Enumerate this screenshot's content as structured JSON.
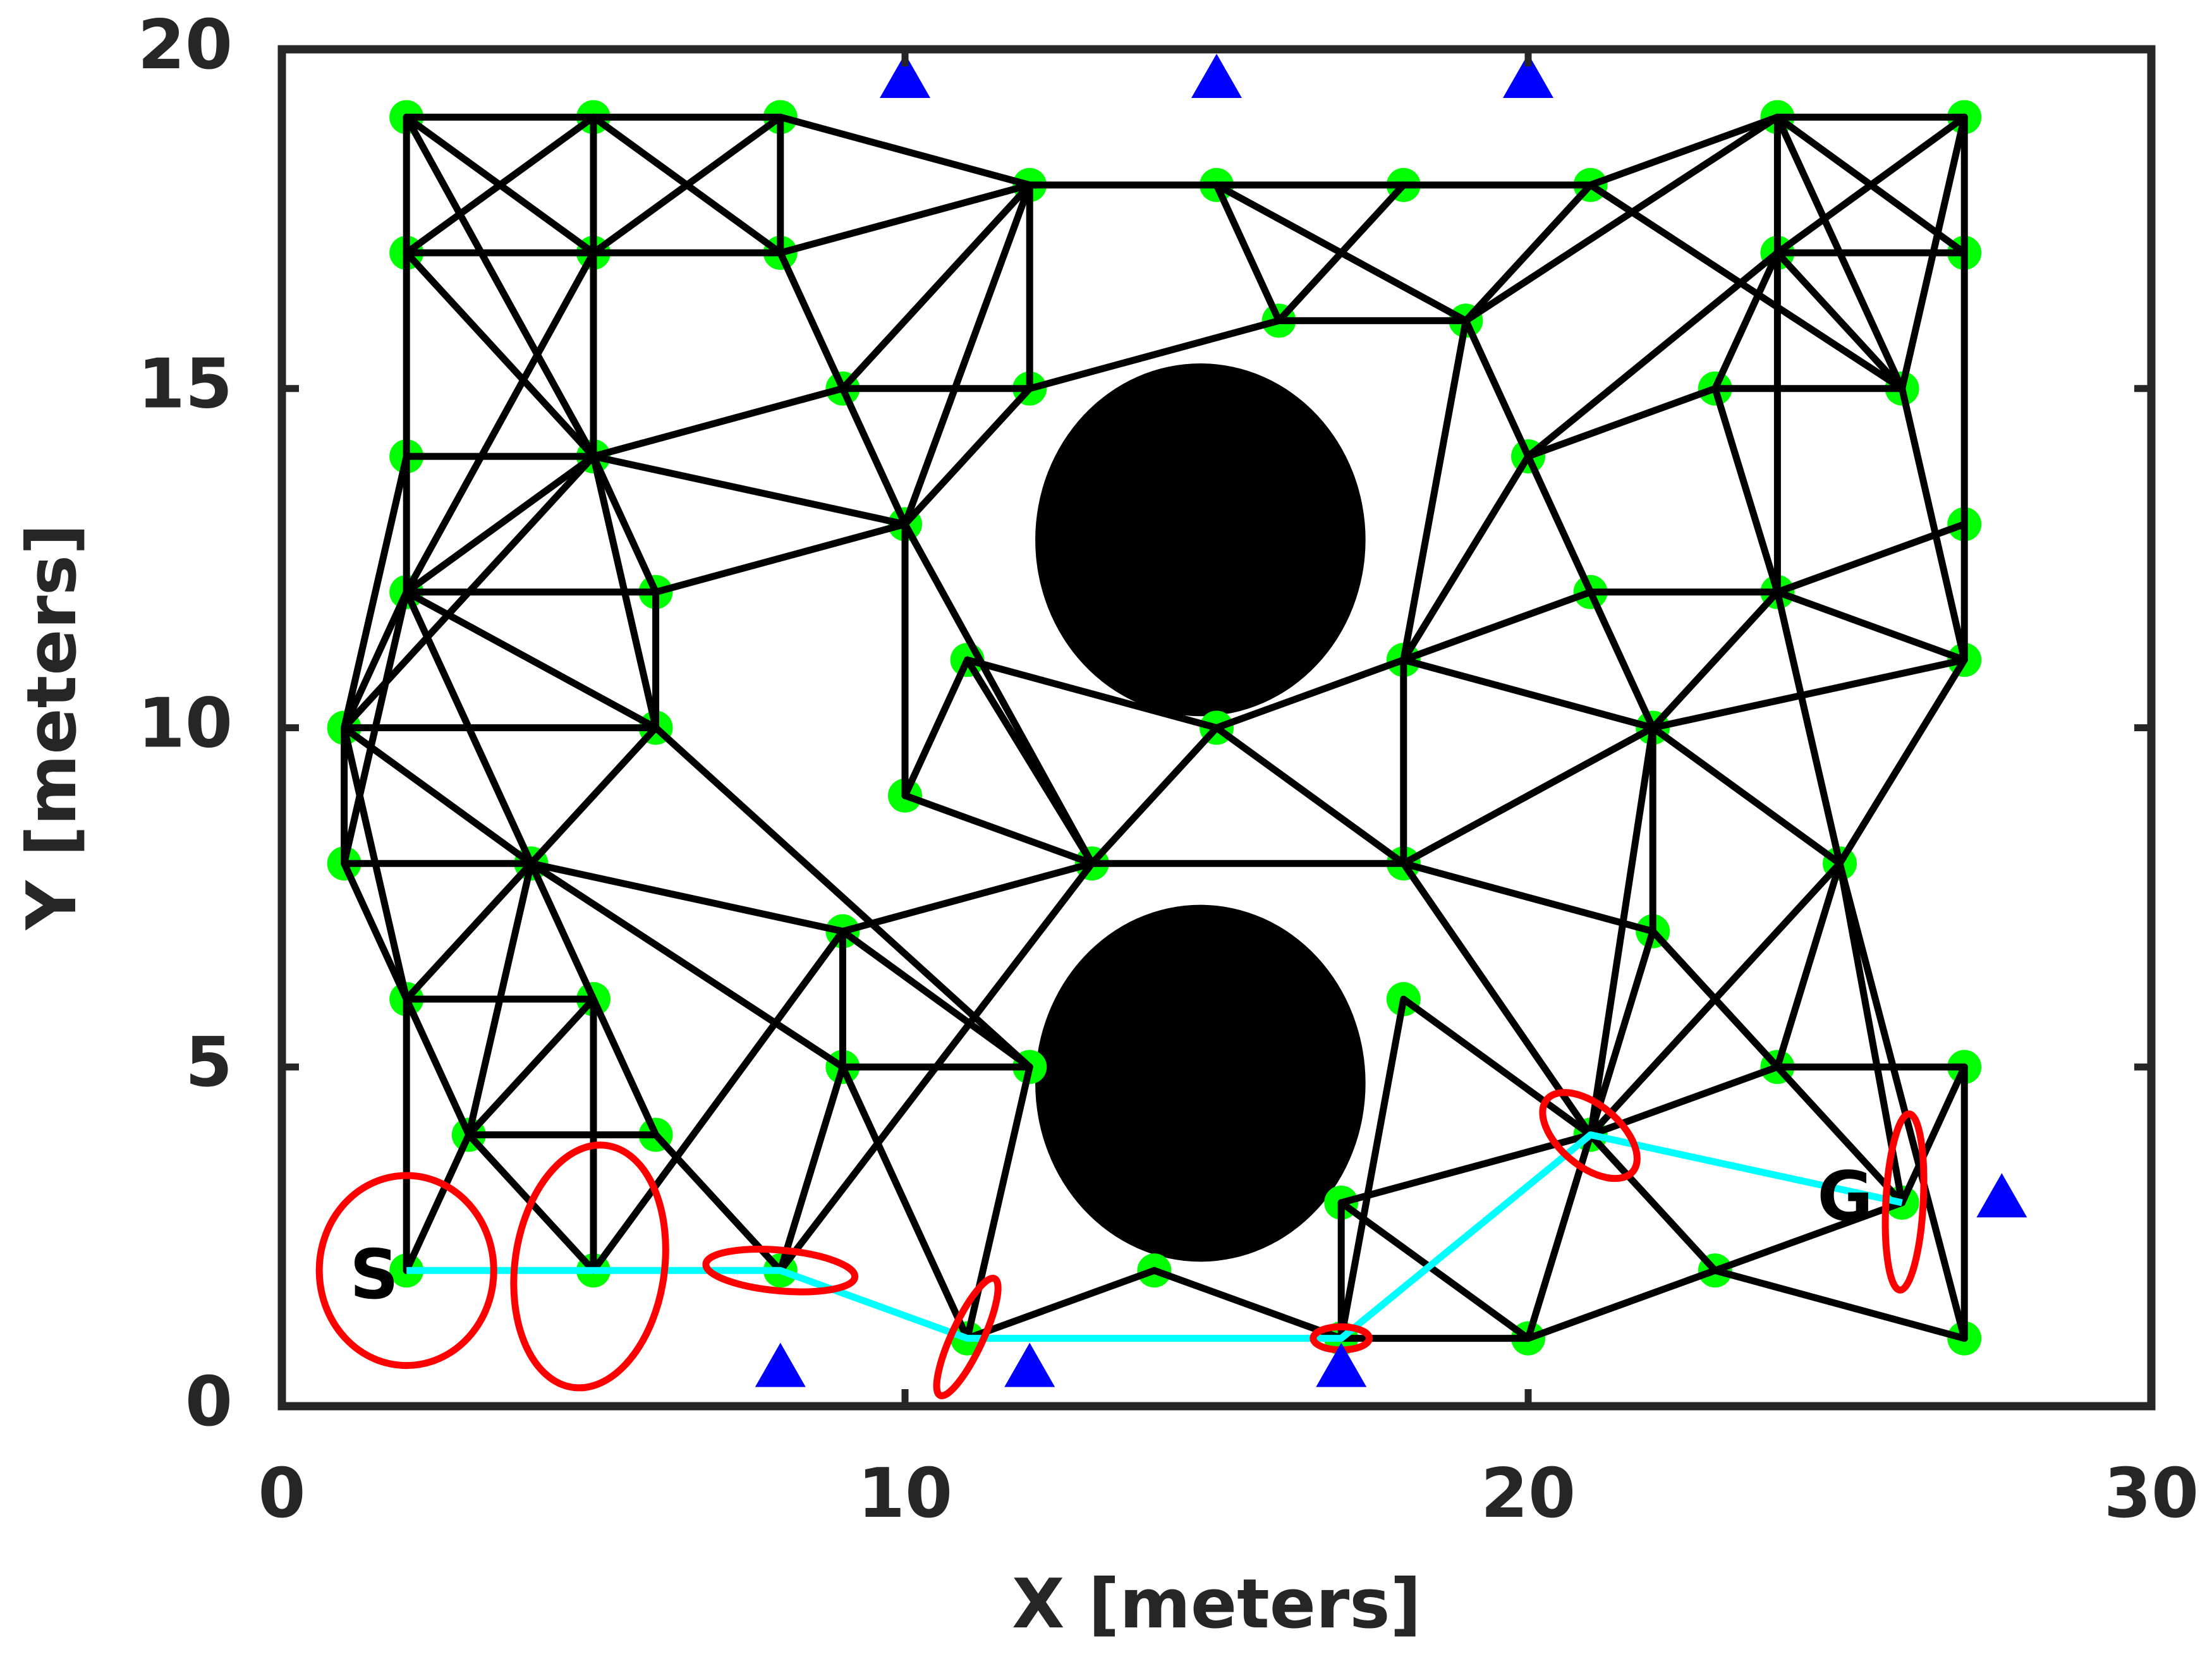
{
  "chart_data": {
    "type": "roadmap",
    "xlabel": "X [meters]",
    "ylabel": "Y [meters]",
    "xlim": [
      0,
      30
    ],
    "ylim": [
      0,
      20
    ],
    "xticks": [
      0,
      10,
      20,
      30
    ],
    "yticks": [
      0,
      5,
      10,
      15,
      20
    ],
    "obstacles": {
      "color": "#000000",
      "items": [
        {
          "x": 14.74,
          "y": 12.77,
          "rx": 2.65,
          "ry": 2.6
        },
        {
          "x": 14.74,
          "y": 4.76,
          "rx": 2.65,
          "ry": 2.63
        }
      ]
    },
    "nodes": {
      "color": "#00ff00",
      "x": [
        2,
        5,
        8,
        2,
        5,
        8,
        12,
        15,
        18,
        21,
        16,
        19,
        24,
        27,
        24,
        27,
        9,
        12,
        23,
        26,
        2,
        5,
        20,
        10,
        27,
        2,
        6,
        21,
        24,
        1,
        6,
        15,
        22,
        11,
        18,
        27,
        10,
        1,
        4,
        13,
        18,
        25,
        9,
        22,
        2,
        5,
        18,
        9,
        12,
        24,
        27,
        3,
        6,
        21,
        17,
        26,
        2,
        5,
        8,
        14,
        23,
        11,
        17,
        20,
        27
      ],
      "y": [
        19,
        19,
        19,
        17,
        17,
        17,
        18,
        18,
        18,
        18,
        16,
        16,
        19,
        19,
        17,
        17,
        15,
        15,
        15,
        15,
        14,
        14,
        14,
        13,
        13,
        12,
        12,
        12,
        12,
        10,
        10,
        10,
        10,
        11,
        11,
        11,
        9,
        8,
        8,
        8,
        8,
        8,
        7,
        7,
        6,
        6,
        6,
        5,
        5,
        5,
        5,
        4,
        4,
        4,
        3,
        3,
        2,
        2,
        2,
        2,
        2,
        1,
        1,
        1,
        1
      ]
    },
    "edges": {
      "color": "#000000",
      "items": [
        [
          2,
          19,
          5,
          19
        ],
        [
          5,
          19,
          8,
          19
        ],
        [
          2,
          19,
          2,
          12
        ],
        [
          5,
          19,
          5,
          17
        ],
        [
          8,
          19,
          8,
          17
        ],
        [
          2,
          17,
          5,
          17
        ],
        [
          5,
          17,
          8,
          17
        ],
        [
          2,
          19,
          5,
          17
        ],
        [
          5,
          19,
          2,
          17
        ],
        [
          5,
          19,
          8,
          17
        ],
        [
          8,
          19,
          5,
          17
        ],
        [
          8,
          19,
          12,
          18
        ],
        [
          2,
          19,
          5,
          14
        ],
        [
          2,
          17,
          5,
          14
        ],
        [
          5,
          17,
          2,
          12
        ],
        [
          5,
          17,
          5,
          14
        ],
        [
          8,
          17,
          12,
          18
        ],
        [
          8,
          17,
          9,
          15
        ],
        [
          12,
          18,
          12,
          15
        ],
        [
          12,
          18,
          15,
          18
        ],
        [
          15,
          18,
          18,
          18
        ],
        [
          18,
          18,
          21,
          18
        ],
        [
          12,
          18,
          9,
          15
        ],
        [
          12,
          18,
          10,
          13
        ],
        [
          15,
          18,
          16,
          16
        ],
        [
          15,
          18,
          19,
          16
        ],
        [
          18,
          18,
          16,
          16
        ],
        [
          16,
          16,
          19,
          16
        ],
        [
          21,
          18,
          19,
          16
        ],
        [
          21,
          18,
          24,
          19
        ],
        [
          21,
          18,
          26,
          15
        ],
        [
          12,
          15,
          16,
          16
        ],
        [
          9,
          15,
          12,
          15
        ],
        [
          5,
          14,
          9,
          15
        ],
        [
          9,
          15,
          10,
          13
        ],
        [
          12,
          15,
          10,
          13
        ],
        [
          5,
          14,
          10,
          13
        ],
        [
          2,
          14,
          5,
          14
        ],
        [
          5,
          14,
          2,
          12
        ],
        [
          5,
          14,
          1,
          10
        ],
        [
          5,
          14,
          6,
          12
        ],
        [
          5,
          14,
          6,
          10
        ],
        [
          2,
          12,
          6,
          12
        ],
        [
          6,
          12,
          6,
          10
        ],
        [
          6,
          12,
          10,
          13
        ],
        [
          2,
          12,
          1,
          10
        ],
        [
          2,
          14,
          1,
          10
        ],
        [
          2,
          12,
          6,
          10
        ],
        [
          2,
          12,
          4,
          8
        ],
        [
          2,
          12,
          1,
          8
        ],
        [
          1,
          10,
          6,
          10
        ],
        [
          1,
          10,
          1,
          8
        ],
        [
          1,
          10,
          4,
          8
        ],
        [
          1,
          10,
          2,
          6
        ],
        [
          1,
          8,
          4,
          8
        ],
        [
          1,
          8,
          2,
          6
        ],
        [
          4,
          8,
          6,
          10
        ],
        [
          4,
          8,
          2,
          6
        ],
        [
          4,
          8,
          3,
          4
        ],
        [
          4,
          8,
          6,
          4
        ],
        [
          4,
          8,
          9,
          7
        ],
        [
          4,
          8,
          9,
          5
        ],
        [
          6,
          10,
          12,
          5
        ],
        [
          2,
          6,
          5,
          6
        ],
        [
          5,
          6,
          5,
          2
        ],
        [
          2,
          6,
          3,
          4
        ],
        [
          2,
          6,
          2,
          2
        ],
        [
          5,
          6,
          3,
          4
        ],
        [
          3,
          4,
          6,
          4
        ],
        [
          2,
          2,
          3,
          4
        ],
        [
          3,
          4,
          5,
          2
        ],
        [
          6,
          4,
          8,
          2
        ],
        [
          5,
          2,
          9,
          7
        ],
        [
          9,
          7,
          9,
          5
        ],
        [
          9,
          7,
          13,
          8
        ],
        [
          10,
          9,
          13,
          8
        ],
        [
          8,
          2,
          13,
          8
        ],
        [
          9,
          5,
          8,
          2
        ],
        [
          9,
          5,
          12,
          5
        ],
        [
          9,
          7,
          12,
          5
        ],
        [
          9,
          5,
          11,
          1
        ],
        [
          12,
          5,
          11,
          1
        ],
        [
          10,
          13,
          10,
          9
        ],
        [
          10,
          13,
          13,
          8
        ],
        [
          11,
          11,
          13,
          8
        ],
        [
          10,
          9,
          11,
          11
        ],
        [
          11,
          11,
          15,
          10
        ],
        [
          13,
          8,
          15,
          10
        ],
        [
          13,
          8,
          18,
          8
        ],
        [
          15,
          10,
          18,
          8
        ],
        [
          15,
          10,
          18,
          11
        ],
        [
          18,
          11,
          18,
          8
        ],
        [
          18,
          11,
          19,
          16
        ],
        [
          18,
          11,
          21,
          12
        ],
        [
          18,
          11,
          22,
          10
        ],
        [
          18,
          11,
          20,
          14
        ],
        [
          18,
          8,
          22,
          10
        ],
        [
          18,
          8,
          22,
          7
        ],
        [
          18,
          8,
          21,
          4
        ],
        [
          18,
          6,
          21,
          4
        ],
        [
          18,
          6,
          17,
          1
        ],
        [
          20,
          14,
          19,
          16
        ],
        [
          20,
          14,
          22,
          10
        ],
        [
          20,
          14,
          24,
          17
        ],
        [
          19,
          16,
          24,
          19
        ],
        [
          20,
          14,
          23,
          15
        ],
        [
          21,
          12,
          24,
          12
        ],
        [
          22,
          10,
          24,
          12
        ],
        [
          22,
          10,
          22,
          7
        ],
        [
          22,
          10,
          27,
          11
        ],
        [
          22,
          10,
          25,
          8
        ],
        [
          22,
          10,
          21,
          4
        ],
        [
          22,
          7,
          21,
          4
        ],
        [
          22,
          7,
          26,
          3
        ],
        [
          24,
          12,
          27,
          13
        ],
        [
          24,
          12,
          27,
          11
        ],
        [
          24,
          12,
          25,
          8
        ],
        [
          24,
          12,
          23,
          15
        ],
        [
          24,
          12,
          24,
          17
        ],
        [
          24,
          19,
          27,
          19
        ],
        [
          24,
          19,
          24,
          17
        ],
        [
          24,
          17,
          27,
          17
        ],
        [
          27,
          19,
          27,
          11
        ],
        [
          24,
          19,
          27,
          17
        ],
        [
          27,
          19,
          24,
          17
        ],
        [
          24,
          19,
          26,
          15
        ],
        [
          27,
          19,
          26,
          15
        ],
        [
          24,
          17,
          26,
          15
        ],
        [
          23,
          15,
          26,
          15
        ],
        [
          23,
          15,
          24,
          17
        ],
        [
          26,
          15,
          27,
          11
        ],
        [
          25,
          8,
          27,
          11
        ],
        [
          25,
          8,
          24,
          5
        ],
        [
          25,
          8,
          26,
          3
        ],
        [
          25,
          8,
          21,
          4
        ],
        [
          25,
          8,
          27,
          1
        ],
        [
          24,
          5,
          27,
          5
        ],
        [
          27,
          5,
          27,
          1
        ],
        [
          27,
          5,
          26,
          3
        ],
        [
          24,
          5,
          21,
          4
        ],
        [
          24,
          5,
          22,
          7
        ],
        [
          21,
          4,
          20,
          1
        ],
        [
          21,
          4,
          23,
          2
        ],
        [
          21,
          4,
          17,
          3
        ],
        [
          23,
          2,
          27,
          1
        ],
        [
          20,
          1,
          26,
          3
        ],
        [
          17,
          3,
          17,
          1
        ],
        [
          17,
          3,
          20,
          1
        ],
        [
          17,
          1,
          20,
          1
        ],
        [
          11,
          1,
          14,
          2
        ],
        [
          14,
          2,
          17,
          1
        ]
      ]
    },
    "path": {
      "color": "#00ffff",
      "x": [
        2,
        5,
        8,
        11,
        17,
        21,
        26
      ],
      "y": [
        2,
        2,
        2,
        1,
        1,
        4,
        3
      ],
      "start_label": "S",
      "goal_label": "G"
    },
    "ellipses": {
      "color": "#ff0000",
      "items": [
        {
          "x": 2,
          "y": 2,
          "rx": 1.4,
          "ry": 1.4,
          "angle": 0
        },
        {
          "x": 4.94,
          "y": 2.06,
          "rx": 1.2,
          "ry": 1.8,
          "angle": -8
        },
        {
          "x": 8,
          "y": 2,
          "rx": 1.2,
          "ry": 0.3,
          "angle": -5
        },
        {
          "x": 11,
          "y": 1.02,
          "rx": 0.25,
          "ry": 0.95,
          "angle": -25
        },
        {
          "x": 17,
          "y": 1,
          "rx": 0.45,
          "ry": 0.17,
          "angle": 0
        },
        {
          "x": 20.99,
          "y": 3.99,
          "rx": 0.9,
          "ry": 0.45,
          "angle": -40
        },
        {
          "x": 26.04,
          "y": 3.01,
          "rx": 0.3,
          "ry": 1.3,
          "angle": -3
        }
      ]
    },
    "landmarks": {
      "color": "#0000ff",
      "x": [
        10,
        15,
        20,
        8,
        12,
        17,
        27.6
      ],
      "y": [
        19.6,
        19.6,
        19.6,
        0.6,
        0.6,
        0.6,
        3.1
      ]
    }
  }
}
